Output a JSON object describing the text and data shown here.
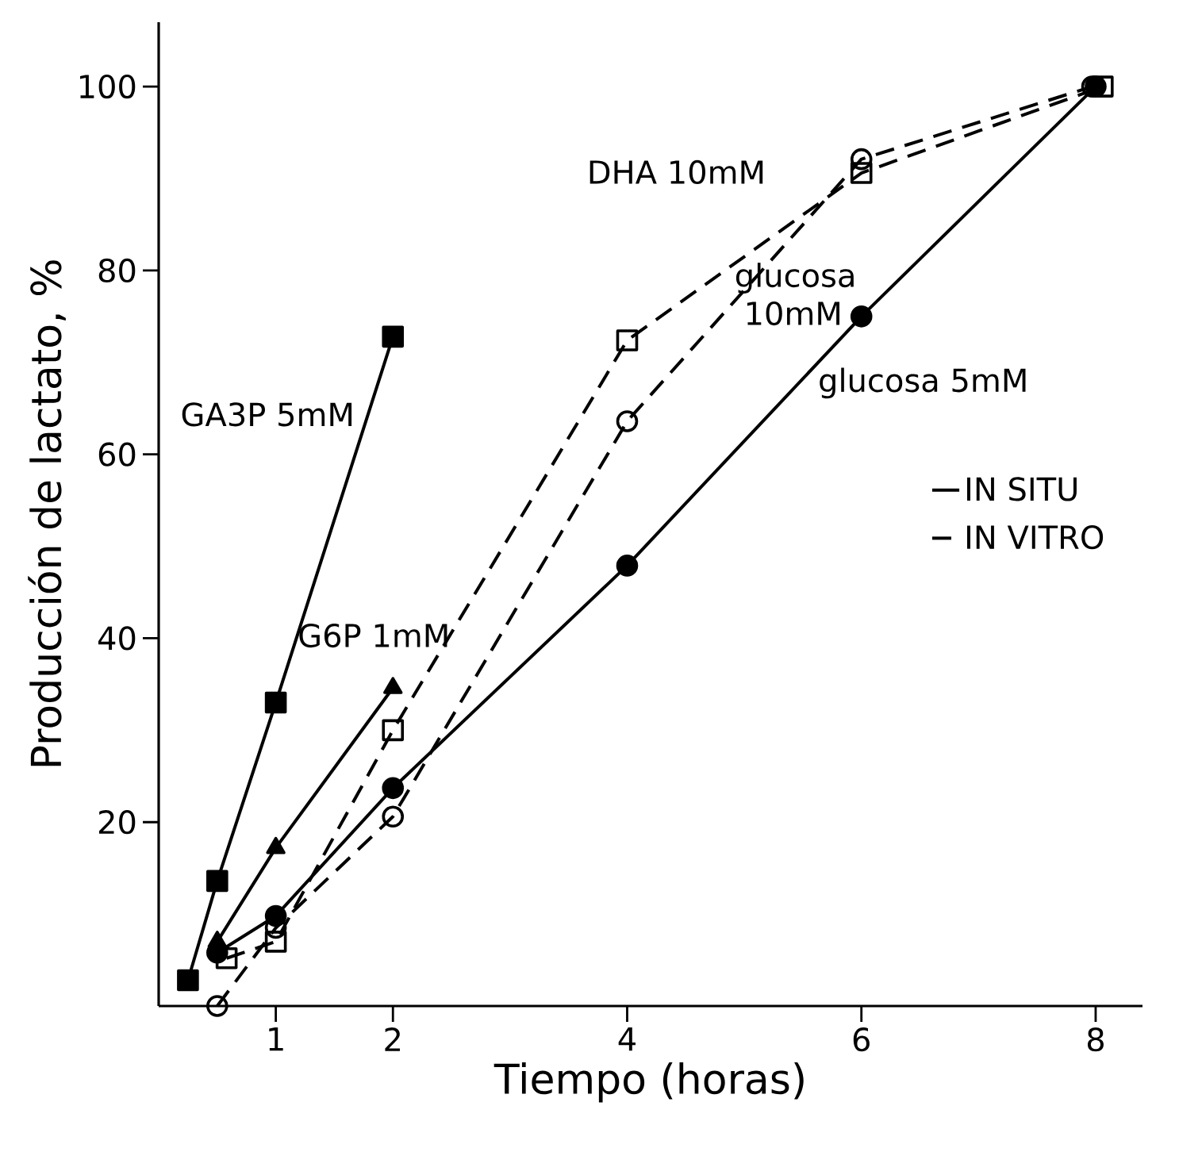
{
  "chart_data": {
    "type": "line",
    "xlabel": "Tiempo  (horas)",
    "ylabel": "Producción de lactato, %",
    "xlim": [
      0,
      8.4
    ],
    "ylim": [
      0,
      107
    ],
    "xticks": [
      1,
      2,
      4,
      6,
      8
    ],
    "yticks": [
      20,
      40,
      60,
      80,
      100
    ],
    "legend": "right",
    "series": [
      {
        "name": "GA3P 5mM",
        "color": "#000000",
        "line_style": "solid",
        "marker": "square",
        "x": [
          0.25,
          0.5,
          1,
          2
        ],
        "values": [
          2.8,
          13.6,
          33,
          72.8
        ]
      },
      {
        "name": "G6P 1mM",
        "color": "#000000",
        "line_style": "solid",
        "marker": "triangle",
        "x": [
          0.5,
          1,
          2
        ],
        "values": [
          7,
          17.2,
          34.6
        ]
      },
      {
        "name": "glucosa 5mM",
        "color": "#000000",
        "line_style": "solid",
        "marker": "circle",
        "x": [
          0.5,
          1,
          2,
          4,
          6,
          8
        ],
        "values": [
          5.8,
          9.8,
          23.7,
          47.9,
          75,
          100
        ]
      },
      {
        "name": "glucosa 10mM",
        "color": "#000000",
        "line_style": "dashed",
        "marker": "circle",
        "x": [
          0.5,
          1,
          2,
          4,
          6,
          7.97
        ],
        "values": [
          0,
          8.5,
          20.6,
          63.6,
          92.1,
          100
        ]
      },
      {
        "name": "DHA 10mM",
        "color": "#000000",
        "line_style": "dashed",
        "marker": "square",
        "x": [
          0.58,
          1,
          2,
          4,
          6,
          8.06
        ],
        "values": [
          5.2,
          7,
          30,
          72.4,
          90.6,
          100
        ]
      }
    ],
    "annotations": [
      "IN  SITU",
      "IN  VITRO"
    ]
  }
}
